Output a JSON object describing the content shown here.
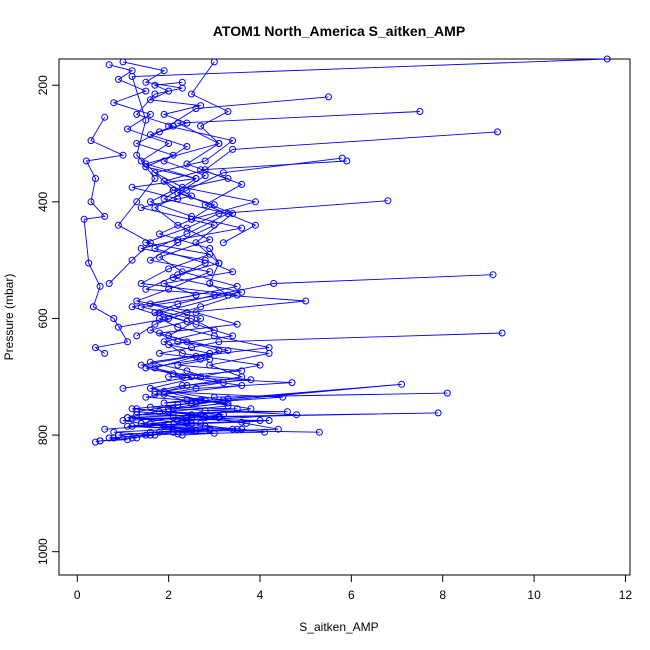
{
  "chart_data": {
    "type": "line",
    "title": "ATOM1 North_America S_aitken_AMP",
    "xlabel": "S_aitken_AMP",
    "ylabel": "Pressure (mbar)",
    "xlim": [
      -0.4,
      12.1
    ],
    "ylim": [
      1040,
      155
    ],
    "y_reversed": true,
    "x_ticks": [
      0,
      2,
      4,
      6,
      8,
      10,
      12
    ],
    "y_ticks": [
      200,
      400,
      600,
      800,
      1000
    ],
    "grid": false,
    "legend": "none",
    "colors": {
      "series": "#0000ff",
      "axis": "#000000"
    },
    "marker": "open-circle",
    "series": [
      {
        "x": [
          11.6,
          1.2,
          1.5,
          1.3,
          2.1,
          3.4,
          2.6,
          3.1,
          2.9,
          3.3,
          1.8,
          2.4,
          1.6,
          2.2,
          4.2,
          2.9,
          3.6,
          2.4,
          1.7,
          2.8,
          3.3,
          2.0,
          2.5,
          3.1,
          2.2,
          2.7,
          1.9,
          3.5,
          2.6,
          2.1,
          3.0,
          2.3,
          1.6,
          2.9,
          1.2,
          2.4,
          4.0,
          1.1,
          2.7,
          1.8,
          1.3,
          3.1,
          1.6,
          2.1,
          0.8,
          1.7,
          1.2,
          0.5,
          0.4
        ],
        "y": [
          155,
          185,
          260,
          320,
          380,
          420,
          470,
          505,
          540,
          560,
          590,
          605,
          620,
          640,
          660,
          680,
          700,
          715,
          730,
          740,
          750,
          760,
          765,
          770,
          775,
          780,
          785,
          790,
          792,
          795,
          797,
          800,
          795,
          790,
          785,
          780,
          775,
          770,
          765,
          760,
          755,
          770,
          780,
          790,
          795,
          800,
          805,
          810,
          812
        ]
      },
      {
        "x": [
          9.2,
          3.4,
          2.8,
          1.9,
          2.5,
          1.4,
          3.0,
          2.2,
          1.6,
          2.9,
          2.0,
          1.3,
          2.6,
          3.5,
          1.8,
          2.4,
          3.1,
          2.7,
          1.5,
          2.1,
          3.8,
          2.3,
          1.7,
          4.5,
          2.6,
          1.2,
          2.0,
          3.2,
          2.5,
          1.0,
          1.4,
          2.8,
          3.6,
          4.1,
          2.2,
          1.6,
          0.7,
          1.1,
          0.5
        ],
        "y": [
          280,
          310,
          345,
          365,
          390,
          410,
          440,
          470,
          500,
          520,
          550,
          570,
          590,
          610,
          625,
          640,
          655,
          670,
          685,
          695,
          705,
          715,
          725,
          735,
          745,
          755,
          760,
          765,
          770,
          775,
          780,
          785,
          790,
          795,
          798,
          800,
          805,
          808,
          810
        ]
      },
      {
        "x": [
          7.5,
          2.2,
          3.1,
          1.5,
          2.6,
          1.9,
          3.3,
          2.4,
          1.7,
          2.8,
          2.1,
          3.6,
          1.4,
          2.5,
          3.0,
          1.9,
          2.3,
          4.0,
          2.7,
          1.6,
          3.2,
          2.0,
          1.1,
          2.5,
          3.4,
          1.8,
          0.9,
          1.3
        ],
        "y": [
          245,
          265,
          300,
          335,
          360,
          395,
          420,
          455,
          480,
          505,
          530,
          555,
          580,
          600,
          620,
          640,
          660,
          680,
          700,
          720,
          740,
          755,
          770,
          780,
          790,
          795,
          800,
          805
        ]
      },
      {
        "x": [
          6.8,
          3.1,
          2.4,
          1.5,
          2.9,
          2.0,
          1.4,
          3.5,
          2.7,
          1.8,
          2.2,
          3.0,
          4.2,
          2.6,
          1.7,
          2.3,
          3.6,
          1.9,
          2.5,
          1.3,
          2.8,
          3.7,
          4.4,
          2.1,
          1.5,
          0.8
        ],
        "y": [
          398,
          420,
          445,
          470,
          490,
          515,
          540,
          560,
          580,
          600,
          615,
          630,
          650,
          665,
          685,
          700,
          715,
          730,
          745,
          760,
          770,
          780,
          790,
          795,
          800,
          805
        ]
      },
      {
        "x": [
          9.1,
          4.3,
          3.0,
          2.2,
          1.7,
          2.6,
          3.4,
          2.0,
          2.9,
          1.6,
          2.4,
          3.2,
          1.9,
          2.7,
          3.8,
          2.1,
          1.4,
          2.5,
          0.9
        ],
        "y": [
          525,
          540,
          560,
          575,
          590,
          610,
          630,
          645,
          660,
          675,
          690,
          710,
          725,
          740,
          755,
          770,
          780,
          790,
          800
        ]
      },
      {
        "x": [
          9.3,
          3.1,
          2.5,
          1.8,
          2.9,
          2.2,
          3.6,
          2.0,
          4.7,
          2.6,
          1.5,
          3.3,
          2.1,
          4.8,
          2.4,
          1.1,
          2.9,
          5.3
        ],
        "y": [
          625,
          640,
          650,
          660,
          670,
          680,
          690,
          700,
          710,
          720,
          735,
          745,
          755,
          765,
          775,
          785,
          792,
          795
        ]
      },
      {
        "x": [
          8.1,
          3.0,
          2.4,
          1.9,
          3.3,
          2.6,
          7.1,
          2.2,
          1.6,
          3.5,
          2.8,
          4.6,
          2.1,
          1.3,
          3.1,
          7.9,
          2.4,
          1.2,
          4.2,
          3.6,
          2.0,
          0.6
        ],
        "y": [
          728,
          735,
          740,
          745,
          738,
          742,
          713,
          748,
          752,
          755,
          758,
          760,
          762,
          765,
          768,
          762,
          770,
          772,
          775,
          778,
          782,
          790
        ]
      },
      {
        "x": [
          5.9,
          2.7,
          3.3,
          2.1,
          1.6,
          2.5,
          3.6,
          2.2,
          1.4,
          2.8,
          3.4,
          1.9,
          2.6,
          1.2,
          2.0,
          0.9
        ],
        "y": [
          330,
          345,
          360,
          380,
          400,
          425,
          445,
          465,
          480,
          500,
          520,
          540,
          560,
          580,
          600,
          615
        ]
      },
      {
        "x": [
          5.5,
          2.6,
          2.0,
          3.4,
          2.8,
          1.7,
          2.3,
          3.9,
          2.5,
          1.8,
          2.9,
          3.1,
          2.2,
          1.5,
          5.0,
          2.4,
          1.7,
          1.3
        ],
        "y": [
          220,
          240,
          270,
          295,
          330,
          350,
          375,
          400,
          430,
          455,
          480,
          505,
          525,
          550,
          570,
          590,
          610,
          630
        ]
      },
      {
        "x": [
          5.8,
          3.2,
          2.4,
          1.7,
          2.2,
          2.9,
          1.8,
          2.3,
          3.5,
          1.6,
          2.7,
          2.0,
          3.3,
          1.4,
          2.5,
          1.0
        ],
        "y": [
          325,
          350,
          380,
          410,
          440,
          465,
          495,
          520,
          545,
          575,
          600,
          630,
          655,
          680,
          700,
          720
        ]
      },
      {
        "x": [
          0.6,
          0.3,
          1.0,
          0.2,
          0.4,
          0.3,
          0.6,
          0.15,
          0.25,
          0.5,
          0.35,
          0.8,
          1.1,
          0.4,
          0.6
        ],
        "y": [
          255,
          295,
          320,
          330,
          360,
          400,
          425,
          430,
          505,
          545,
          580,
          600,
          640,
          650,
          660
        ]
      },
      {
        "x": [
          0.7,
          1.2,
          0.9,
          1.5,
          0.8,
          1.6,
          1.1,
          2.0,
          1.4,
          1.7,
          1.3,
          0.9,
          1.6,
          1.2,
          0.7
        ],
        "y": [
          165,
          175,
          190,
          210,
          230,
          250,
          275,
          300,
          330,
          360,
          400,
          440,
          470,
          500,
          540
        ]
      },
      {
        "x": [
          1.0,
          1.9,
          1.5,
          2.3,
          1.7,
          1.3,
          2.1,
          1.6,
          2.4,
          1.9,
          2.8,
          2.2,
          3.0,
          2.5
        ],
        "y": [
          160,
          175,
          195,
          205,
          215,
          250,
          270,
          285,
          305,
          330,
          355,
          385,
          405,
          430
        ]
      },
      {
        "x": [
          2.3,
          1.7,
          2.0,
          1.6,
          2.7,
          1.9,
          2.4,
          1.8,
          1.3,
          2.1,
          1.5,
          2.6,
          1.2,
          2.2
        ],
        "y": [
          195,
          200,
          210,
          225,
          235,
          250,
          265,
          280,
          300,
          320,
          340,
          360,
          375,
          395
        ]
      },
      {
        "x": [
          3.0,
          2.5,
          3.3,
          2.7,
          3.1,
          2.4,
          3.6,
          2.8,
          3.9,
          3.2
        ],
        "y": [
          160,
          215,
          245,
          270,
          300,
          335,
          370,
          405,
          440,
          470
        ]
      }
    ]
  }
}
